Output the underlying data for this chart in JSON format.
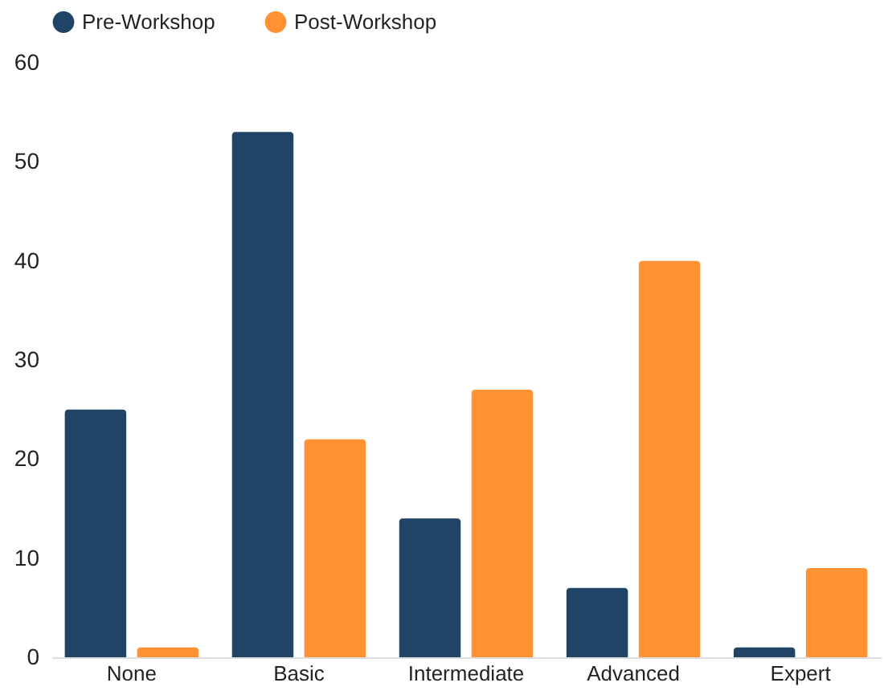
{
  "chart_data": {
    "type": "bar",
    "categories": [
      "None",
      "Basic",
      "Intermediate",
      "Advanced",
      "Expert"
    ],
    "series": [
      {
        "name": "Pre-Workshop",
        "color": "#1f4465",
        "values": [
          25,
          53,
          14,
          7,
          1
        ]
      },
      {
        "name": "Post-Workshop",
        "color": "#ff9233",
        "values": [
          1,
          22,
          27,
          40,
          9
        ]
      }
    ],
    "ylim": [
      0,
      60
    ],
    "yticks": [
      0,
      10,
      20,
      30,
      40,
      50,
      60
    ],
    "grid": false,
    "legend": "top"
  }
}
